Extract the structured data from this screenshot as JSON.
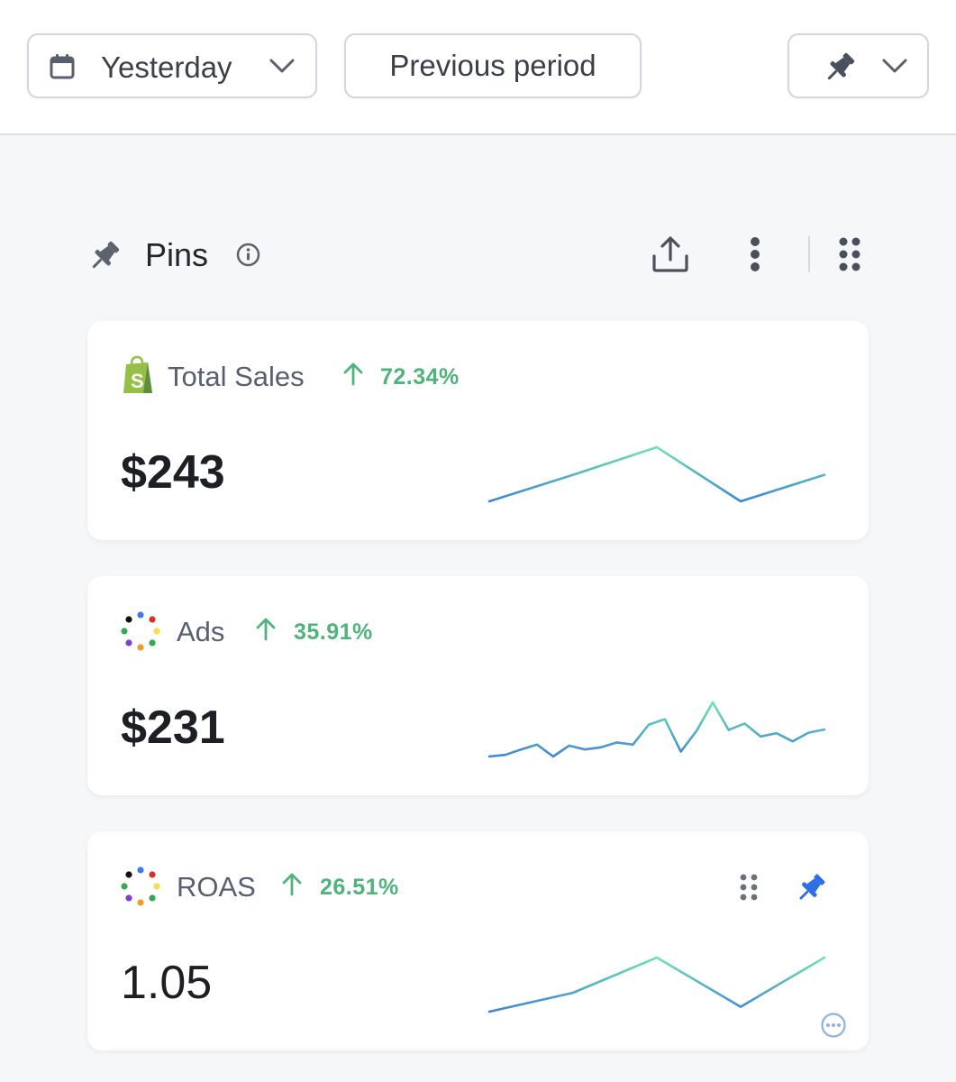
{
  "toolbar": {
    "date_range": "Yesterday",
    "compare": "Previous period"
  },
  "section": {
    "title": "Pins"
  },
  "cards": [
    {
      "name": "Total Sales",
      "source_icon": "shopify-icon",
      "change": "72.34%",
      "trend": "up",
      "value": "$243",
      "sparkline": [
        0,
        0.49,
        1.0,
        0.0,
        0.49
      ]
    },
    {
      "name": "Ads",
      "source_icon": "ad-platforms-icon",
      "change": "35.91%",
      "trend": "up",
      "value": "$231",
      "sparkline": [
        0.0,
        0.03,
        0.13,
        0.22,
        0.0,
        0.2,
        0.13,
        0.17,
        0.26,
        0.22,
        0.59,
        0.69,
        0.09,
        0.48,
        1.0,
        0.49,
        0.61,
        0.37,
        0.43,
        0.28,
        0.44,
        0.5
      ]
    },
    {
      "name": "ROAS",
      "source_icon": "ad-platforms-icon",
      "change": "26.51%",
      "trend": "up",
      "value": "1.05",
      "sparkline": [
        0.0,
        0.35,
        1.0,
        0.09,
        1.0
      ]
    }
  ],
  "colors": {
    "positive": "#4fb37a",
    "spark_start": "#3f86d6",
    "spark_end": "#6fe3b3",
    "accent_blue": "#2f6fe6"
  }
}
